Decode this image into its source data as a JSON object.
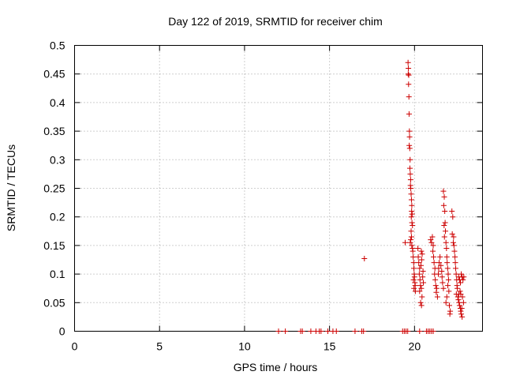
{
  "chart_data": {
    "type": "scatter",
    "title": "Day 122 of 2019, SRMTID for receiver chim",
    "xlabel": "GPS time / hours",
    "ylabel": "SRMTID / TECUs",
    "xlim": [
      0,
      24
    ],
    "ylim": [
      0,
      0.5
    ],
    "xticks": [
      0,
      5,
      10,
      15,
      20
    ],
    "xtick_labels": [
      "0",
      "5",
      "10",
      "15",
      "20"
    ],
    "yticks": [
      0,
      0.05,
      0.1,
      0.15,
      0.2,
      0.25,
      0.3,
      0.35,
      0.4,
      0.45,
      0.5
    ],
    "ytick_labels": [
      "0",
      "0.05",
      "0.1",
      "0.15",
      "0.2",
      "0.25",
      "0.3",
      "0.35",
      "0.4",
      "0.45",
      "0.5"
    ],
    "grid": true,
    "marker": "plus",
    "color": "#cc0000",
    "series": [
      {
        "name": "SRMTID",
        "points": [
          [
            12.0,
            0
          ],
          [
            12.4,
            0
          ],
          [
            13.3,
            0
          ],
          [
            13.4,
            0
          ],
          [
            13.9,
            0
          ],
          [
            14.2,
            0
          ],
          [
            14.4,
            0
          ],
          [
            14.5,
            0
          ],
          [
            14.9,
            0
          ],
          [
            15.2,
            0
          ],
          [
            15.4,
            0
          ],
          [
            16.5,
            0
          ],
          [
            16.9,
            0
          ],
          [
            17.0,
            0
          ],
          [
            19.3,
            0
          ],
          [
            19.4,
            0
          ],
          [
            19.5,
            0
          ],
          [
            19.6,
            0
          ],
          [
            20.3,
            0
          ],
          [
            20.7,
            0
          ],
          [
            20.8,
            0
          ],
          [
            20.9,
            0
          ],
          [
            21.0,
            0
          ],
          [
            21.1,
            0
          ],
          [
            17.05,
            0.127
          ],
          [
            19.45,
            0.155
          ],
          [
            19.62,
            0.47
          ],
          [
            19.64,
            0.46
          ],
          [
            19.63,
            0.45
          ],
          [
            19.66,
            0.448
          ],
          [
            19.65,
            0.432
          ],
          [
            19.67,
            0.41
          ],
          [
            19.68,
            0.38
          ],
          [
            19.7,
            0.35
          ],
          [
            19.71,
            0.34
          ],
          [
            19.69,
            0.325
          ],
          [
            19.72,
            0.32
          ],
          [
            19.74,
            0.3
          ],
          [
            19.73,
            0.285
          ],
          [
            19.75,
            0.275
          ],
          [
            19.77,
            0.265
          ],
          [
            19.76,
            0.255
          ],
          [
            19.78,
            0.25
          ],
          [
            19.8,
            0.24
          ],
          [
            19.82,
            0.23
          ],
          [
            19.84,
            0.22
          ],
          [
            19.83,
            0.21
          ],
          [
            19.86,
            0.205
          ],
          [
            19.81,
            0.2
          ],
          [
            19.85,
            0.19
          ],
          [
            19.88,
            0.185
          ],
          [
            19.8,
            0.175
          ],
          [
            19.82,
            0.165
          ],
          [
            19.78,
            0.16
          ],
          [
            19.75,
            0.155
          ],
          [
            19.84,
            0.15
          ],
          [
            19.88,
            0.145
          ],
          [
            19.9,
            0.14
          ],
          [
            19.92,
            0.13
          ],
          [
            19.95,
            0.12
          ],
          [
            19.96,
            0.11
          ],
          [
            19.98,
            0.1
          ],
          [
            20.0,
            0.095
          ],
          [
            19.94,
            0.09
          ],
          [
            20.02,
            0.085
          ],
          [
            20.04,
            0.08
          ],
          [
            19.97,
            0.075
          ],
          [
            20.05,
            0.07
          ],
          [
            20.2,
            0.145
          ],
          [
            20.22,
            0.13
          ],
          [
            20.25,
            0.12
          ],
          [
            20.3,
            0.11
          ],
          [
            20.28,
            0.1
          ],
          [
            20.32,
            0.09
          ],
          [
            20.35,
            0.08
          ],
          [
            20.3,
            0.07
          ],
          [
            20.4,
            0.14
          ],
          [
            20.45,
            0.135
          ],
          [
            20.42,
            0.125
          ],
          [
            20.38,
            0.115
          ],
          [
            20.5,
            0.105
          ],
          [
            20.48,
            0.095
          ],
          [
            20.52,
            0.085
          ],
          [
            20.4,
            0.075
          ],
          [
            20.44,
            0.06
          ],
          [
            20.36,
            0.05
          ],
          [
            20.41,
            0.045
          ],
          [
            20.95,
            0.16
          ],
          [
            21.0,
            0.155
          ],
          [
            21.05,
            0.165
          ],
          [
            21.1,
            0.15
          ],
          [
            21.08,
            0.14
          ],
          [
            21.12,
            0.13
          ],
          [
            21.15,
            0.12
          ],
          [
            21.2,
            0.11
          ],
          [
            21.18,
            0.1
          ],
          [
            21.22,
            0.09
          ],
          [
            21.25,
            0.08
          ],
          [
            21.3,
            0.075
          ],
          [
            21.28,
            0.068
          ],
          [
            21.35,
            0.06
          ],
          [
            21.4,
            0.1
          ],
          [
            21.42,
            0.11
          ],
          [
            21.45,
            0.12
          ],
          [
            21.5,
            0.13
          ],
          [
            21.55,
            0.115
          ],
          [
            21.6,
            0.105
          ],
          [
            21.62,
            0.095
          ],
          [
            21.65,
            0.085
          ],
          [
            21.7,
            0.075
          ],
          [
            21.7,
            0.245
          ],
          [
            21.75,
            0.235
          ],
          [
            21.72,
            0.22
          ],
          [
            21.78,
            0.21
          ],
          [
            21.8,
            0.19
          ],
          [
            21.74,
            0.185
          ],
          [
            21.82,
            0.175
          ],
          [
            21.76,
            0.165
          ],
          [
            21.85,
            0.155
          ],
          [
            21.88,
            0.145
          ],
          [
            21.9,
            0.13
          ],
          [
            21.92,
            0.12
          ],
          [
            21.95,
            0.11
          ],
          [
            21.98,
            0.1
          ],
          [
            22.0,
            0.09
          ],
          [
            21.96,
            0.08
          ],
          [
            22.02,
            0.07
          ],
          [
            21.9,
            0.06
          ],
          [
            21.85,
            0.05
          ],
          [
            22.05,
            0.045
          ],
          [
            22.1,
            0.035
          ],
          [
            22.08,
            0.03
          ],
          [
            22.2,
            0.21
          ],
          [
            22.25,
            0.2
          ],
          [
            22.22,
            0.17
          ],
          [
            22.3,
            0.165
          ],
          [
            22.28,
            0.155
          ],
          [
            22.32,
            0.15
          ],
          [
            22.35,
            0.14
          ],
          [
            22.38,
            0.13
          ],
          [
            22.4,
            0.12
          ],
          [
            22.42,
            0.11
          ],
          [
            22.45,
            0.1
          ],
          [
            22.48,
            0.09
          ],
          [
            22.5,
            0.08
          ],
          [
            22.52,
            0.075
          ],
          [
            22.46,
            0.065
          ],
          [
            22.55,
            0.06
          ],
          [
            22.58,
            0.055
          ],
          [
            22.6,
            0.065
          ],
          [
            22.62,
            0.05
          ],
          [
            22.65,
            0.045
          ],
          [
            22.7,
            0.04
          ],
          [
            22.72,
            0.035
          ],
          [
            22.75,
            0.03
          ],
          [
            22.8,
            0.025
          ],
          [
            22.78,
            0.04
          ],
          [
            22.6,
            0.095
          ],
          [
            22.65,
            0.09
          ],
          [
            22.7,
            0.085
          ],
          [
            22.75,
            0.1
          ],
          [
            22.8,
            0.095
          ],
          [
            22.85,
            0.09
          ],
          [
            22.9,
            0.095
          ],
          [
            22.68,
            0.07
          ],
          [
            22.72,
            0.065
          ],
          [
            22.82,
            0.06
          ],
          [
            22.88,
            0.05
          ]
        ]
      }
    ]
  }
}
